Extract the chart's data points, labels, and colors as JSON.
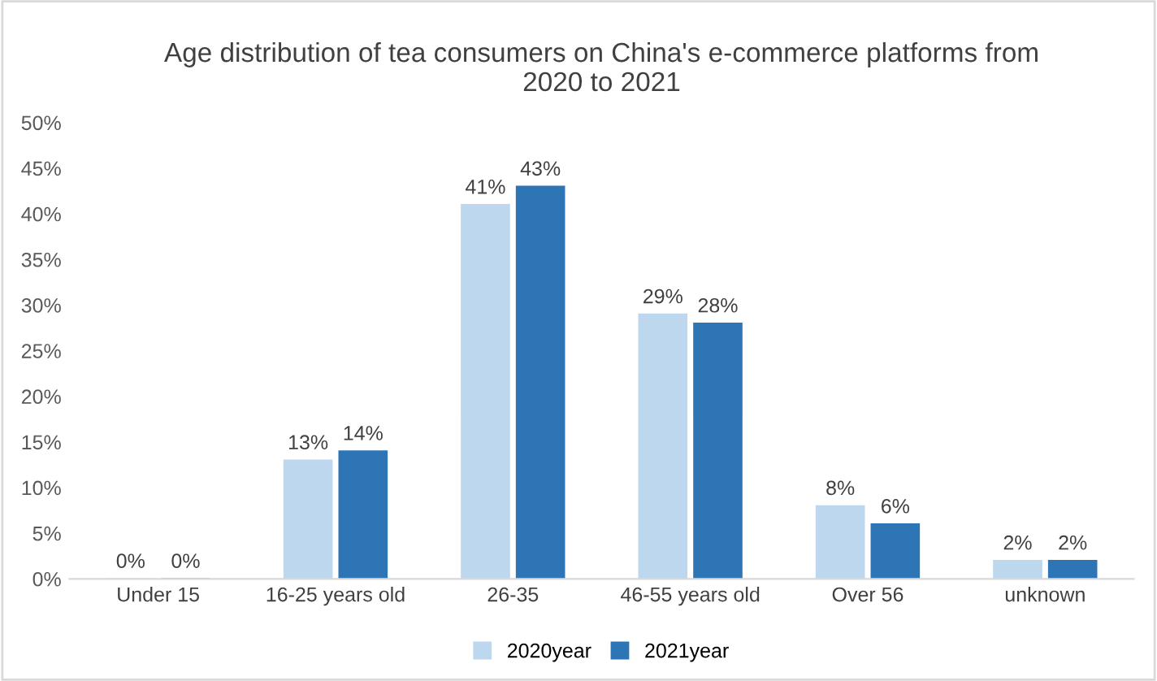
{
  "chart_data": {
    "type": "bar",
    "title": "Age distribution of tea consumers on China's e-commerce platforms from\n2020 to 2021",
    "categories": [
      "Under 15",
      "16-25 years old",
      "26-35",
      "46-55 years old",
      "Over 56",
      "unknown"
    ],
    "series": [
      {
        "name": "2020year",
        "color": "#bdd7ee",
        "values": [
          0,
          13,
          41,
          29,
          8,
          2
        ],
        "value_labels": [
          "0%",
          "13%",
          "41%",
          "29%",
          "8%",
          "2%"
        ]
      },
      {
        "name": "2021year",
        "color": "#2e75b6",
        "values": [
          0,
          14,
          43,
          28,
          6,
          2
        ],
        "value_labels": [
          "0%",
          "14%",
          "43%",
          "28%",
          "6%",
          "2%"
        ]
      }
    ],
    "ylim": [
      0,
      50
    ],
    "yticks": [
      {
        "value": 0,
        "label": "0%"
      },
      {
        "value": 5,
        "label": "5%"
      },
      {
        "value": 10,
        "label": "10%"
      },
      {
        "value": 15,
        "label": "15%"
      },
      {
        "value": 20,
        "label": "20%"
      },
      {
        "value": 25,
        "label": "25%"
      },
      {
        "value": 30,
        "label": "30%"
      },
      {
        "value": 35,
        "label": "35%"
      },
      {
        "value": 40,
        "label": "40%"
      },
      {
        "value": 45,
        "label": "45%"
      },
      {
        "value": 50,
        "label": "50%"
      }
    ],
    "grid": false,
    "legend": "bottom"
  }
}
